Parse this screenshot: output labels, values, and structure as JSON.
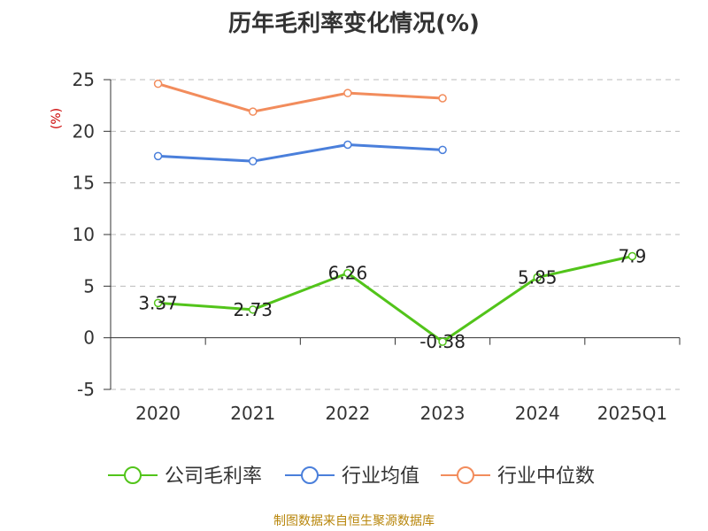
{
  "chart_data": {
    "type": "line",
    "title": "历年毛利率变化情况(%)",
    "ylabel": "(%)",
    "categories": [
      "2020",
      "2021",
      "2022",
      "2023",
      "2024",
      "2025Q1"
    ],
    "ylim": [
      -5,
      25
    ],
    "yticks": [
      "25",
      "20",
      "15",
      "10",
      "5",
      "0",
      "-5"
    ],
    "grid": true,
    "legend_position": "bottom",
    "series": [
      {
        "name": "公司毛利率",
        "color": "#52c41a",
        "values": [
          3.37,
          2.73,
          6.26,
          -0.38,
          5.85,
          7.9
        ],
        "labels": [
          "3.37",
          "2.73",
          "6.26",
          "-0.38",
          "5.85",
          "7.9"
        ]
      },
      {
        "name": "行业均值",
        "color": "#4a7fdb",
        "values": [
          17.6,
          17.1,
          18.7,
          18.2,
          null,
          null
        ]
      },
      {
        "name": "行业中位数",
        "color": "#f28c5c",
        "values": [
          24.6,
          21.9,
          23.7,
          23.2,
          null,
          null
        ]
      }
    ]
  },
  "footer": {
    "source": "制图数据来自恒生聚源数据库"
  }
}
